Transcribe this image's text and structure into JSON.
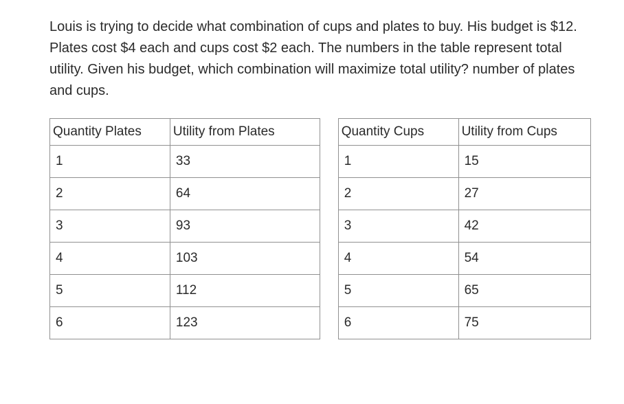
{
  "question": "Louis is trying to decide what combination of cups and plates to buy. His budget is $12. Plates cost $4 each and cups cost $2 each. The numbers in the table represent total utility. Given his budget, which combination will maximize total utility? number of plates and cups.",
  "table": {
    "headers": {
      "c1": "Quantity Plates",
      "c2": "Utility from Plates",
      "c3": "Quantity Cups",
      "c4": "Utility from Cups"
    },
    "rows": [
      {
        "c1": "1",
        "c2": "33",
        "c3": "1",
        "c4": "15"
      },
      {
        "c1": "2",
        "c2": "64",
        "c3": "2",
        "c4": "27"
      },
      {
        "c1": "3",
        "c2": "93",
        "c3": "3",
        "c4": "42"
      },
      {
        "c1": "4",
        "c2": "103",
        "c3": "4",
        "c4": "54"
      },
      {
        "c1": "5",
        "c2": "112",
        "c3": "5",
        "c4": "65"
      },
      {
        "c1": "6",
        "c2": "123",
        "c3": "6",
        "c4": "75"
      }
    ],
    "border_color": "#909090",
    "text_color": "#2a2a2a",
    "font_size": 19,
    "header_font_size": 19
  }
}
